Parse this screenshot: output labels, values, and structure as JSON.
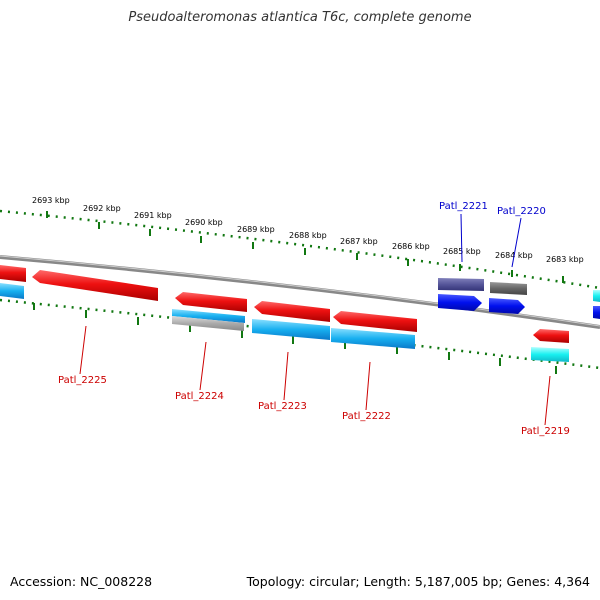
{
  "title": "Pseudoalteromonas atlantica T6c, complete genome",
  "footer": {
    "accession": "Accession: NC_008228",
    "summary": "Topology: circular; Length: 5,187,005 bp; Genes: 4,364"
  },
  "colors": {
    "forward_gene": "#ff2020",
    "cds_cyan": "#18b0f0",
    "cds_light_cyan": "#18f0f0",
    "gray_gene": "#aaaaaa",
    "dark_gray_gene": "#666666",
    "navy_gene": "#555599",
    "blue_gene": "#0010ee",
    "tick_green": "#117711",
    "backbone": "#888888",
    "reverse_label": "#cc0000",
    "forward_label": "#0000cc"
  },
  "scale_labels": [
    "2693 kbp",
    "2692 kbp",
    "2691 kbp",
    "2690 kbp",
    "2689 kbp",
    "2688 kbp",
    "2687 kbp",
    "2686 kbp",
    "2685 kbp",
    "2684 kbp",
    "2683 kbp"
  ],
  "gene_labels": [
    {
      "id": "patl2225",
      "text": "Patl_2225",
      "strand": "reverse"
    },
    {
      "id": "patl2224",
      "text": "Patl_2224",
      "strand": "reverse"
    },
    {
      "id": "patl2223",
      "text": "Patl_2223",
      "strand": "reverse"
    },
    {
      "id": "patl2222",
      "text": "Patl_2222",
      "strand": "reverse"
    },
    {
      "id": "patl2219",
      "text": "Patl_2219",
      "strand": "reverse"
    },
    {
      "id": "patl2221",
      "text": "Patl_2221",
      "strand": "forward"
    },
    {
      "id": "patl2220",
      "text": "Patl_2220",
      "strand": "forward"
    }
  ]
}
